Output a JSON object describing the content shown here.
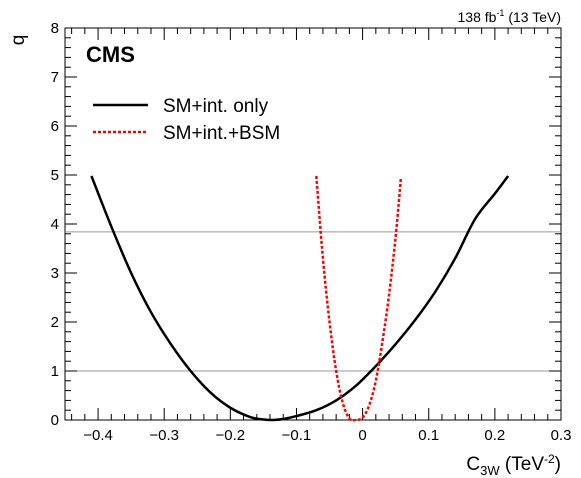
{
  "header": {
    "lumi_value": "138 fb",
    "lumi_exp": "-1",
    "lumi_energy": " (13 TeV)",
    "experiment": "CMS"
  },
  "chart_data": {
    "type": "line",
    "ylabel": "q",
    "xlabel_main": "C",
    "xlabel_sub": "3W",
    "xlabel_unit_open": " (TeV",
    "xlabel_unit_exp": "-2",
    "xlabel_unit_close": ")",
    "xlim": [
      -0.45,
      0.3
    ],
    "ylim": [
      0,
      8
    ],
    "x_ticks": [
      -0.4,
      -0.3,
      -0.2,
      -0.1,
      0,
      0.1,
      0.2,
      0.3
    ],
    "x_tick_labels": [
      "−0.4",
      "−0.3",
      "−0.2",
      "−0.1",
      "0",
      "0.1",
      "0.2",
      "0.3"
    ],
    "y_ticks": [
      0,
      1,
      2,
      3,
      4,
      5,
      6,
      7,
      8
    ],
    "y_tick_labels": [
      "0",
      "1",
      "2",
      "3",
      "4",
      "5",
      "6",
      "7",
      "8"
    ],
    "reference_lines": [
      1.0,
      3.84
    ],
    "legend_placement": "top-left",
    "series": [
      {
        "name": "SM+int. only",
        "color": "#000000",
        "style": "solid",
        "x": [
          -0.41,
          -0.38,
          -0.35,
          -0.32,
          -0.29,
          -0.26,
          -0.23,
          -0.2,
          -0.17,
          -0.15,
          -0.135,
          -0.12,
          -0.1,
          -0.07,
          -0.04,
          -0.01,
          0.02,
          0.05,
          0.08,
          0.11,
          0.14,
          0.17,
          0.2,
          0.22
        ],
        "y": [
          4.98,
          3.95,
          3.0,
          2.2,
          1.55,
          1.0,
          0.56,
          0.25,
          0.06,
          0.01,
          0.0,
          0.02,
          0.08,
          0.2,
          0.4,
          0.7,
          1.1,
          1.55,
          2.05,
          2.62,
          3.3,
          4.1,
          4.62,
          4.98
        ]
      },
      {
        "name": "SM+int.+BSM",
        "color": "#ff0000",
        "style": "dotted",
        "x": [
          -0.07,
          -0.06,
          -0.05,
          -0.04,
          -0.03,
          -0.02,
          -0.01,
          0.0,
          0.01,
          0.02,
          0.03,
          0.04,
          0.05,
          0.058
        ],
        "y": [
          4.98,
          3.3,
          2.0,
          1.0,
          0.35,
          0.03,
          0.0,
          0.05,
          0.3,
          0.8,
          1.6,
          2.55,
          3.75,
          4.95
        ]
      }
    ]
  }
}
